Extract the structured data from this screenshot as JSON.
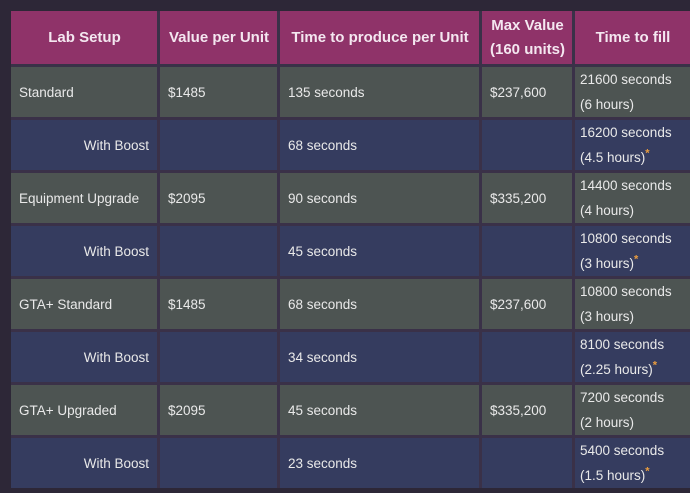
{
  "colors": {
    "page_bg": "#2d2737",
    "border": "#3a3148",
    "header_bg": "#8f3369",
    "row_bg": "#4d5452",
    "boost_bg": "#353c5f",
    "header_text": "#f4e7f0",
    "cell_text": "#e9e9e9",
    "star": "#e89c3f"
  },
  "table": {
    "columns": [
      {
        "label": "Lab Setup"
      },
      {
        "label": "Value per Unit"
      },
      {
        "label": "Time to produce per Unit"
      },
      {
        "label": "Max Value (160 units)"
      },
      {
        "label": "Time to fill"
      }
    ],
    "rows": [
      {
        "lab": "Standard",
        "value": "$1485",
        "time": "135 seconds",
        "max": "$237,600",
        "fill1": "21600 seconds",
        "fill2": "(6 hours)",
        "star": ""
      },
      {
        "lab": "With Boost",
        "value": "",
        "time": "68 seconds",
        "max": "",
        "fill1": "16200 seconds",
        "fill2": "(4.5 hours)",
        "star": "*"
      },
      {
        "lab": "Equipment Upgrade",
        "value": "$2095",
        "time": "90 seconds",
        "max": "$335,200",
        "fill1": "14400 seconds",
        "fill2": "(4 hours)",
        "star": ""
      },
      {
        "lab": "With Boost",
        "value": "",
        "time": "45 seconds",
        "max": "",
        "fill1": "10800 seconds",
        "fill2": "(3 hours)",
        "star": "*"
      },
      {
        "lab": "GTA+ Standard",
        "value": "$1485",
        "time": "68 seconds",
        "max": "$237,600",
        "fill1": "10800 seconds",
        "fill2": "(3 hours)",
        "star": ""
      },
      {
        "lab": "With Boost",
        "value": "",
        "time": "34 seconds",
        "max": "",
        "fill1": "8100 seconds",
        "fill2": "(2.25 hours)",
        "star": "*"
      },
      {
        "lab": "GTA+ Upgraded",
        "value": "$2095",
        "time": "45 seconds",
        "max": "$335,200",
        "fill1": "7200 seconds",
        "fill2": "(2 hours)",
        "star": ""
      },
      {
        "lab": "With Boost",
        "value": "",
        "time": "23 seconds",
        "max": "",
        "fill1": "5400 seconds",
        "fill2": "(1.5 hours)",
        "star": "*"
      }
    ]
  }
}
